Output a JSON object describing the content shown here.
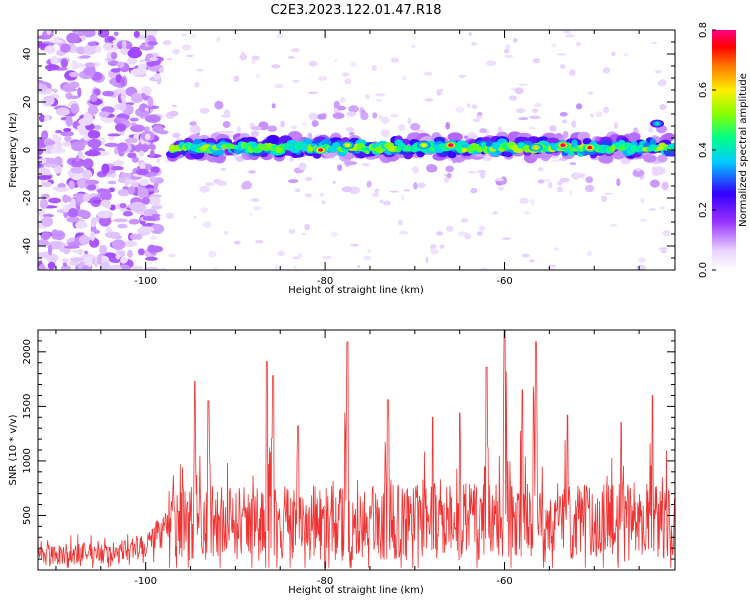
{
  "title": "C2E3.2023.122.01.47.R18",
  "chart_data": [
    {
      "type": "heatmap",
      "xlabel": "Height of straight line (km)",
      "ylabel": "Frequency (Hz)",
      "xlim": [
        -112,
        -41
      ],
      "ylim": [
        -50,
        50
      ],
      "xticks": [
        -100,
        -80,
        -60
      ],
      "yticks": [
        -40,
        -20,
        0,
        20,
        40
      ],
      "colorbar": {
        "label": "Normalized spectral amplitude",
        "range": [
          0.0,
          0.8
        ],
        "ticks": [
          "0.0",
          "0.2",
          "0.4",
          "0.6",
          "0.8"
        ]
      },
      "band": {
        "center_frequency_hz": 1,
        "half_width_hz": 6,
        "onset_height_km": -97,
        "peaks": [
          {
            "x": -80.5,
            "y": 0,
            "amplitude": 0.75
          },
          {
            "x": -77.5,
            "y": 2,
            "amplitude": 0.6
          },
          {
            "x": -69,
            "y": 2,
            "amplitude": 0.6
          },
          {
            "x": -66,
            "y": 2,
            "amplitude": 0.78
          },
          {
            "x": -56.5,
            "y": 1,
            "amplitude": 0.62
          },
          {
            "x": -53.5,
            "y": 2,
            "amplitude": 0.78
          },
          {
            "x": -50.5,
            "y": 1,
            "amplitude": 0.75
          },
          {
            "x": -43,
            "y": 11,
            "amplitude": 0.4
          }
        ]
      },
      "noise_region": {
        "x_range": [
          -112,
          -100
        ],
        "amplitude": 0.12
      }
    },
    {
      "type": "line",
      "xlabel": "Height of straight line (km)",
      "ylabel": "SNR (10 * v/v)",
      "xlim": [
        -112,
        -41
      ],
      "ylim": [
        0,
        2200
      ],
      "xticks": [
        -100,
        -80,
        -60
      ],
      "yticks": [
        500,
        1000,
        1500,
        2000
      ],
      "color": "#ee3333",
      "series": [
        {
          "segments": [
            {
              "x": [
                -112,
                -103,
                -99,
                -97.5
              ],
              "baseline": [
                130,
                150,
                250,
                380
              ],
              "spread": [
                190,
                200,
                260,
                340
              ]
            },
            {
              "x": [
                -97.5,
                -41
              ],
              "baseline": [
                380,
                420
              ],
              "spread": [
                700,
                700
              ]
            }
          ],
          "peaks": [
            {
              "x": -94.5,
              "y": 1730
            },
            {
              "x": -93,
              "y": 1550
            },
            {
              "x": -86.5,
              "y": 1910
            },
            {
              "x": -85.8,
              "y": 1780
            },
            {
              "x": -83,
              "y": 1320
            },
            {
              "x": -77.5,
              "y": 2090
            },
            {
              "x": -73,
              "y": 1560
            },
            {
              "x": -68,
              "y": 1400
            },
            {
              "x": -65,
              "y": 1440
            },
            {
              "x": -62,
              "y": 1860
            },
            {
              "x": -60,
              "y": 2200
            },
            {
              "x": -58,
              "y": 1650
            },
            {
              "x": -56.5,
              "y": 2090
            },
            {
              "x": -53,
              "y": 1420
            },
            {
              "x": -47,
              "y": 1350
            },
            {
              "x": -43.5,
              "y": 1600
            }
          ]
        }
      ]
    }
  ]
}
